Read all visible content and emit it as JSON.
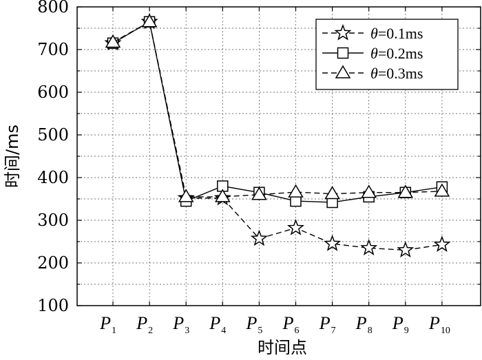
{
  "chart_data": {
    "type": "line",
    "xlabel": "时间点",
    "ylabel": "时间/ms",
    "ylim": [
      100,
      800
    ],
    "yticks": [
      100,
      200,
      300,
      400,
      500,
      600,
      700,
      800
    ],
    "grid": true,
    "legend_position": "top-right",
    "categories": [
      {
        "main": "P",
        "sub": "1"
      },
      {
        "main": "P",
        "sub": "2"
      },
      {
        "main": "P",
        "sub": "3"
      },
      {
        "main": "P",
        "sub": "4"
      },
      {
        "main": "P",
        "sub": "5"
      },
      {
        "main": "P",
        "sub": "6"
      },
      {
        "main": "P",
        "sub": "7"
      },
      {
        "main": "P",
        "sub": "8"
      },
      {
        "main": "P",
        "sub": "9"
      },
      {
        "main": "P",
        "sub": "10"
      }
    ],
    "series": [
      {
        "name": "θ=0.1ms",
        "legend_symbol": "θ",
        "legend_rest": "=0.1ms",
        "marker": "star",
        "line_style": "dashed",
        "values": [
          715,
          765,
          352,
          352,
          257,
          282,
          245,
          235,
          230,
          243
        ]
      },
      {
        "name": "θ=0.2ms",
        "legend_symbol": "θ",
        "legend_rest": "=0.2ms",
        "marker": "square",
        "line_style": "solid",
        "values": [
          715,
          765,
          345,
          380,
          365,
          345,
          342,
          355,
          365,
          378
        ]
      },
      {
        "name": "θ=0.3ms",
        "legend_symbol": "θ",
        "legend_rest": "=0.3ms",
        "marker": "triangle",
        "line_style": "dashed",
        "values": [
          717,
          765,
          355,
          355,
          360,
          366,
          362,
          365,
          365,
          368
        ]
      }
    ]
  }
}
